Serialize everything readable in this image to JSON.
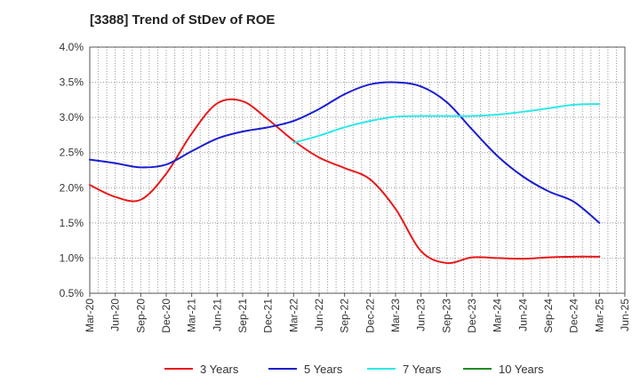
{
  "chart_data": {
    "type": "line",
    "title": "[3388]  Trend of StDev of ROE",
    "xlabel": "",
    "ylabel": "",
    "x": [
      "Mar-20",
      "Jun-20",
      "Sep-20",
      "Dec-20",
      "Mar-21",
      "Jun-21",
      "Sep-21",
      "Dec-21",
      "Mar-22",
      "Jun-22",
      "Sep-22",
      "Dec-22",
      "Mar-23",
      "Jun-23",
      "Sep-23",
      "Dec-23",
      "Mar-24",
      "Jun-24",
      "Sep-24",
      "Dec-24",
      "Mar-25",
      "Jun-25"
    ],
    "ylim": [
      0.5,
      4.0
    ],
    "yticks": [
      "0.5%",
      "1.0%",
      "1.5%",
      "2.0%",
      "2.5%",
      "3.0%",
      "3.5%",
      "4.0%"
    ],
    "ytick_values": [
      0.5,
      1.0,
      1.5,
      2.0,
      2.5,
      3.0,
      3.5,
      4.0
    ],
    "grid": true,
    "legend_position": "bottom",
    "series": [
      {
        "name": "3 Years",
        "color": "#e8191a",
        "values": [
          2.04,
          1.87,
          1.83,
          2.2,
          2.77,
          3.2,
          3.23,
          2.97,
          2.67,
          2.43,
          2.28,
          2.12,
          1.7,
          1.1,
          0.93,
          1.01,
          1.0,
          0.99,
          1.01,
          1.02,
          1.02,
          null
        ]
      },
      {
        "name": "5 Years",
        "color": "#1a1ecf",
        "values": [
          2.4,
          2.35,
          2.29,
          2.33,
          2.52,
          2.7,
          2.8,
          2.86,
          2.95,
          3.12,
          3.33,
          3.47,
          3.5,
          3.44,
          3.22,
          2.83,
          2.45,
          2.16,
          1.95,
          1.8,
          1.5,
          null
        ]
      },
      {
        "name": "7 Years",
        "color": "#2de8e8",
        "values": [
          null,
          null,
          null,
          null,
          null,
          null,
          null,
          null,
          2.64,
          2.74,
          2.86,
          2.95,
          3.01,
          3.02,
          3.02,
          3.02,
          3.04,
          3.08,
          3.13,
          3.18,
          3.19,
          null
        ]
      },
      {
        "name": "10 Years",
        "color": "#1e8c1e",
        "values": [
          null,
          null,
          null,
          null,
          null,
          null,
          null,
          null,
          null,
          null,
          null,
          null,
          null,
          null,
          null,
          null,
          null,
          null,
          null,
          null,
          null,
          null
        ]
      }
    ]
  }
}
